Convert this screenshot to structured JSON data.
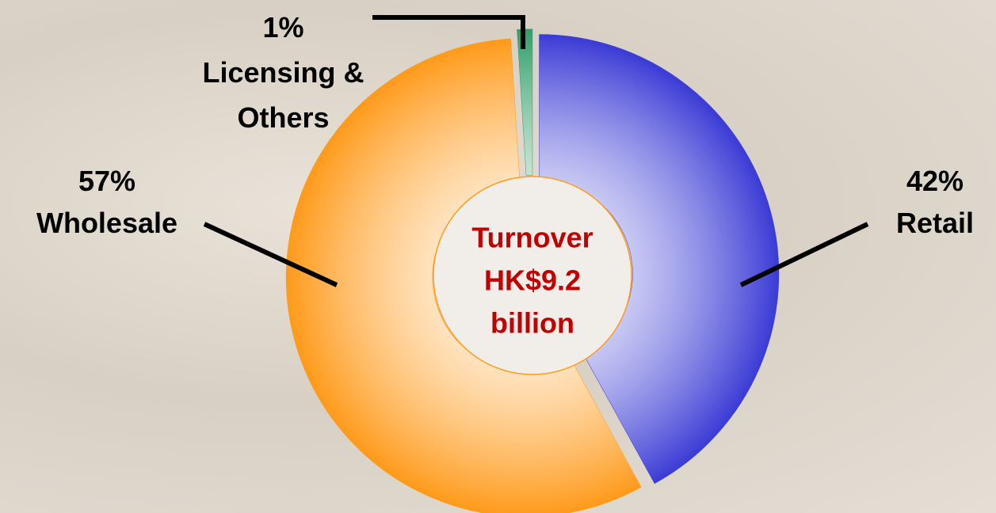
{
  "chart_data": {
    "type": "pie",
    "categories": [
      "Retail",
      "Wholesale",
      "Licensing & Others"
    ],
    "values": [
      42,
      57,
      1
    ],
    "value_labels": [
      "42%",
      "57%",
      "1%"
    ],
    "colors": [
      "#3b3bd6",
      "#ff9a1a",
      "#2f9e6a"
    ],
    "center_label": [
      "Turnover",
      "HK$9.2",
      "billion"
    ]
  }
}
